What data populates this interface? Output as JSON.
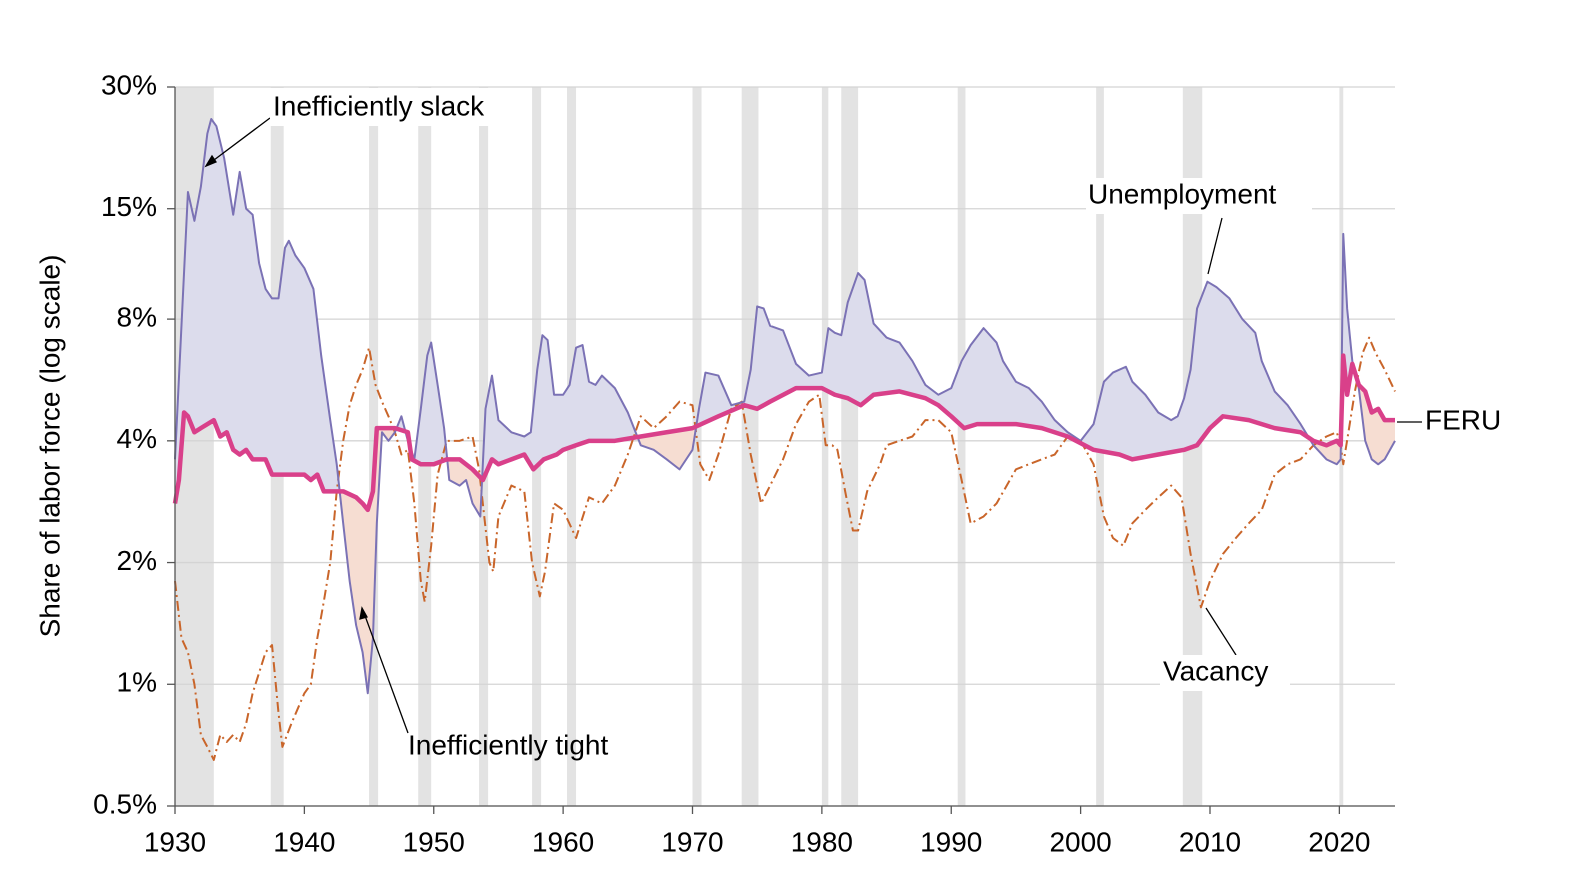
{
  "chart_data": {
    "type": "line",
    "y_label": "Share of labor force (log scale)",
    "log_y": true,
    "grid": true,
    "xlim": [
      1930,
      2024.3
    ],
    "xticks": [
      1930,
      1940,
      1950,
      1960,
      1970,
      1980,
      1990,
      2000,
      2010,
      2020
    ],
    "ylim": [
      0.5,
      30
    ],
    "yticks": [
      {
        "value": 0.5,
        "label": "0.5%"
      },
      {
        "value": 1,
        "label": "1%"
      },
      {
        "value": 2,
        "label": "2%"
      },
      {
        "value": 4,
        "label": "4%"
      },
      {
        "value": 8,
        "label": "8%"
      },
      {
        "value": 15,
        "label": "15%"
      },
      {
        "value": 30,
        "label": "30%"
      }
    ],
    "recessions": [
      [
        1930,
        1933
      ],
      [
        1937.4,
        1938.4
      ],
      [
        1945,
        1945.7
      ],
      [
        1948.8,
        1949.8
      ],
      [
        1953.5,
        1954.2
      ],
      [
        1957.6,
        1958.3
      ],
      [
        1960.3,
        1961
      ],
      [
        1970,
        1970.7
      ],
      [
        1973.8,
        1975.1
      ],
      [
        1980,
        1980.5
      ],
      [
        1981.5,
        1982.8
      ],
      [
        1990.5,
        1991.1
      ],
      [
        2001.2,
        2001.8
      ],
      [
        2007.9,
        2009.4
      ],
      [
        2020,
        2020.3
      ]
    ],
    "annotations": [
      "Inefficiently slack",
      "Inefficiently tight"
    ],
    "series": [
      {
        "name": "Unemployment",
        "color": "#7b72b5",
        "x": [
          1930,
          1931,
          1931.5,
          1932,
          1932.5,
          1932.8,
          1933.2,
          1933.8,
          1934.5,
          1935,
          1935.5,
          1936,
          1936.5,
          1937,
          1937.5,
          1938,
          1938.5,
          1938.8,
          1939.3,
          1940,
          1940.7,
          1941.3,
          1942,
          1942.5,
          1943,
          1943.5,
          1944,
          1944.5,
          1944.9,
          1945.3,
          1945.6,
          1946,
          1946.5,
          1947,
          1947.5,
          1948,
          1948.5,
          1949,
          1949.5,
          1949.8,
          1950.3,
          1950.8,
          1951.2,
          1952,
          1952.5,
          1953,
          1953.6,
          1954,
          1954.5,
          1955,
          1956,
          1957,
          1957.5,
          1958,
          1958.4,
          1958.8,
          1959.3,
          1960,
          1960.5,
          1961,
          1961.5,
          1962,
          1962.5,
          1963,
          1964,
          1965,
          1966,
          1967,
          1968,
          1969,
          1970,
          1970.5,
          1971,
          1972,
          1973,
          1974,
          1974.5,
          1975,
          1975.5,
          1976,
          1977,
          1978,
          1979,
          1980,
          1980.5,
          1981,
          1981.5,
          1982,
          1982.8,
          1983.3,
          1984,
          1985,
          1986,
          1987,
          1988,
          1989,
          1990,
          1990.8,
          1991.5,
          1992.5,
          1993.5,
          1994,
          1995,
          1996,
          1997,
          1998,
          1999,
          2000,
          2001,
          2001.8,
          2002.5,
          2003.5,
          2004,
          2005,
          2006,
          2007,
          2007.5,
          2008,
          2008.5,
          2009,
          2009.8,
          2010.5,
          2011.5,
          2012.5,
          2013.5,
          2014,
          2015,
          2016,
          2017,
          2018,
          2019,
          2019.8,
          2020.1,
          2020.3,
          2020.6,
          2021,
          2021.5,
          2022,
          2022.5,
          2023,
          2023.5,
          2024.3
        ],
        "values": [
          3.6,
          16.5,
          14,
          17,
          23,
          25,
          24,
          20,
          14.5,
          18.5,
          15,
          14.5,
          11,
          9.5,
          9,
          9,
          12,
          12.5,
          11.5,
          10.7,
          9.5,
          6.5,
          4.5,
          3.5,
          2.5,
          1.8,
          1.4,
          1.2,
          0.95,
          1.3,
          2.5,
          4.2,
          4,
          4.2,
          4.6,
          4,
          3.6,
          4.8,
          6.5,
          7,
          5.5,
          4.3,
          3.2,
          3.1,
          3.2,
          2.8,
          2.6,
          4.8,
          5.8,
          4.5,
          4.2,
          4.1,
          4.2,
          6,
          7.3,
          7.1,
          5.2,
          5.2,
          5.5,
          6.8,
          6.9,
          5.6,
          5.5,
          5.8,
          5.4,
          4.7,
          3.9,
          3.8,
          3.6,
          3.4,
          3.8,
          4.8,
          5.9,
          5.8,
          4.9,
          5,
          6,
          8.6,
          8.5,
          7.7,
          7.5,
          6.2,
          5.8,
          5.9,
          7.6,
          7.4,
          7.3,
          8.8,
          10.4,
          10,
          7.8,
          7.2,
          7,
          6.3,
          5.5,
          5.2,
          5.4,
          6.3,
          6.9,
          7.6,
          7,
          6.3,
          5.6,
          5.4,
          5,
          4.5,
          4.2,
          4,
          4.4,
          5.6,
          5.9,
          6.1,
          5.6,
          5.2,
          4.7,
          4.5,
          4.6,
          5.1,
          6,
          8.5,
          9.9,
          9.6,
          9,
          8,
          7.4,
          6.3,
          5.3,
          4.9,
          4.4,
          3.9,
          3.6,
          3.5,
          3.6,
          13,
          8.5,
          6.3,
          5.4,
          4,
          3.6,
          3.5,
          3.6,
          4
        ]
      },
      {
        "name": "FERU",
        "color": "#d9408a",
        "x": [
          1930,
          1930.3,
          1930.7,
          1931,
          1931.5,
          1932,
          1933,
          1933.5,
          1934,
          1934.5,
          1935,
          1935.5,
          1936,
          1937,
          1937.5,
          1938,
          1939,
          1940,
          1940.5,
          1941,
          1941.5,
          1942,
          1943,
          1944,
          1944.5,
          1944.9,
          1945.3,
          1945.6,
          1946,
          1947,
          1948,
          1948.3,
          1949,
          1950,
          1951,
          1952,
          1953,
          1953.8,
          1954.5,
          1955,
          1956,
          1957,
          1957.7,
          1958.5,
          1959.5,
          1960,
          1961,
          1962,
          1964,
          1966,
          1968,
          1970,
          1972,
          1974,
          1975,
          1976,
          1978,
          1980,
          1981,
          1982,
          1983,
          1984,
          1986,
          1988,
          1989,
          1990,
          1991,
          1992,
          1993,
          1995,
          1997,
          1999,
          2001,
          2003,
          2004,
          2006,
          2008,
          2009,
          2010,
          2011,
          2013,
          2015,
          2017,
          2018,
          2019,
          2019.8,
          2020.1,
          2020.3,
          2020.6,
          2021,
          2021.5,
          2022,
          2022.5,
          2023,
          2023.5,
          2024.3
        ],
        "values": [
          2.8,
          3.2,
          4.7,
          4.6,
          4.2,
          4.3,
          4.5,
          4.1,
          4.2,
          3.8,
          3.7,
          3.8,
          3.6,
          3.6,
          3.3,
          3.3,
          3.3,
          3.3,
          3.2,
          3.3,
          3,
          3,
          3,
          2.9,
          2.8,
          2.7,
          3,
          4.3,
          4.3,
          4.3,
          4.2,
          3.6,
          3.5,
          3.5,
          3.6,
          3.6,
          3.4,
          3.2,
          3.6,
          3.5,
          3.6,
          3.7,
          3.4,
          3.6,
          3.7,
          3.8,
          3.9,
          4,
          4,
          4.1,
          4.2,
          4.3,
          4.6,
          4.9,
          4.8,
          5,
          5.4,
          5.4,
          5.2,
          5.1,
          4.9,
          5.2,
          5.3,
          5.1,
          4.9,
          4.6,
          4.3,
          4.4,
          4.4,
          4.4,
          4.3,
          4.1,
          3.8,
          3.7,
          3.6,
          3.7,
          3.8,
          3.9,
          4.3,
          4.6,
          4.5,
          4.3,
          4.2,
          4,
          3.9,
          4,
          3.9,
          6.5,
          5.2,
          6.2,
          5.5,
          5.3,
          4.7,
          4.8,
          4.5,
          4.5
        ]
      },
      {
        "name": "Vacancy",
        "color": "#c9652a",
        "x": [
          1930,
          1930.5,
          1931,
          1931.5,
          1932,
          1932.5,
          1933,
          1933.5,
          1934,
          1934.5,
          1935,
          1935.5,
          1936,
          1937,
          1937.5,
          1938,
          1938.3,
          1939,
          1940,
          1940.5,
          1941,
          1941.5,
          1942,
          1942.5,
          1943,
          1943.5,
          1944,
          1944.5,
          1945,
          1945.5,
          1946,
          1946.5,
          1947,
          1947.5,
          1948,
          1948.5,
          1949,
          1949.3,
          1949.8,
          1950.3,
          1951,
          1952,
          1953,
          1953.5,
          1954.3,
          1954.6,
          1955,
          1956,
          1957,
          1957.6,
          1958.2,
          1958.6,
          1959.3,
          1960,
          1961,
          1962,
          1963,
          1964,
          1965,
          1966,
          1967,
          1968,
          1969,
          1970,
          1970.6,
          1971.3,
          1972,
          1973,
          1973.8,
          1974.5,
          1975.3,
          1976,
          1977,
          1978,
          1979,
          1979.8,
          1980.3,
          1980.8,
          1981.2,
          1981.8,
          1982.4,
          1982.8,
          1983.5,
          1984.5,
          1985,
          1986,
          1987,
          1988,
          1989,
          1990,
          1990.8,
          1991.5,
          1992.5,
          1993.5,
          1995,
          1996,
          1997,
          1998,
          1999,
          2000,
          2001,
          2001.8,
          2002.5,
          2003.3,
          2004,
          2005,
          2006,
          2007,
          2007.8,
          2008.5,
          2009.3,
          2010,
          2011,
          2012,
          2013,
          2014,
          2015,
          2016,
          2017,
          2018,
          2019,
          2019.8,
          2020.1,
          2020.3,
          2020.7,
          2021.2,
          2021.8,
          2022.3,
          2022.8,
          2023.5,
          2024.3
        ],
        "values": [
          1.8,
          1.3,
          1.2,
          1,
          0.75,
          0.7,
          0.65,
          0.75,
          0.72,
          0.75,
          0.72,
          0.8,
          0.95,
          1.2,
          1.25,
          0.85,
          0.7,
          0.8,
          0.95,
          1,
          1.3,
          1.6,
          2,
          3,
          4,
          4.9,
          5.5,
          6,
          6.8,
          5.5,
          5,
          4.6,
          4.2,
          3.7,
          3.8,
          2.8,
          1.8,
          1.6,
          2.2,
          3.3,
          4,
          4,
          4.1,
          3.4,
          2,
          1.9,
          2.6,
          3.1,
          3,
          2,
          1.65,
          1.9,
          2.8,
          2.7,
          2.3,
          2.9,
          2.8,
          3.1,
          3.7,
          4.6,
          4.3,
          4.6,
          5,
          4.9,
          3.5,
          3.2,
          3.7,
          4.8,
          5,
          3.7,
          2.8,
          3.1,
          3.6,
          4.4,
          5,
          5.2,
          3.9,
          3.9,
          3.8,
          3,
          2.4,
          2.4,
          3,
          3.5,
          3.9,
          4,
          4.1,
          4.5,
          4.5,
          4.2,
          3.2,
          2.5,
          2.6,
          2.8,
          3.4,
          3.5,
          3.6,
          3.7,
          4.1,
          4,
          3.5,
          2.6,
          2.3,
          2.2,
          2.5,
          2.7,
          2.9,
          3.1,
          2.9,
          2.1,
          1.55,
          1.8,
          2.1,
          2.3,
          2.5,
          2.7,
          3.3,
          3.5,
          3.6,
          3.9,
          4.1,
          4.2,
          3.9,
          3.5,
          4.2,
          5.3,
          6.6,
          7.2,
          6.6,
          6,
          5.3
        ]
      }
    ]
  }
}
